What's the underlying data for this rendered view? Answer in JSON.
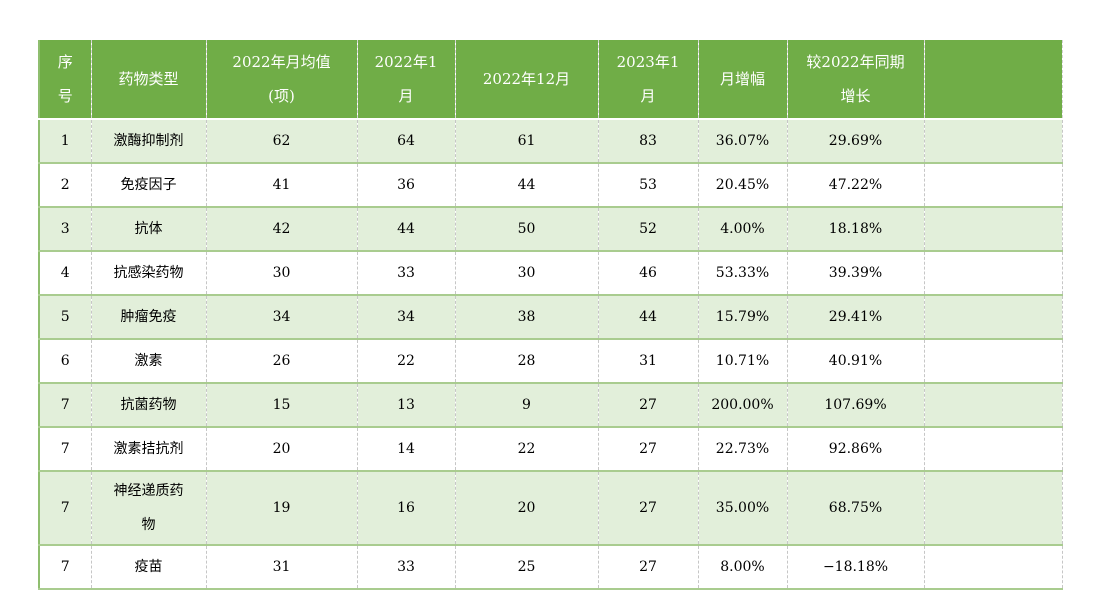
{
  "chart_data": {
    "type": "table",
    "title": "",
    "columns": [
      "序\n号",
      "药物类型",
      "2022年月均值\n(项)",
      "2022年1\n月",
      "2022年12月",
      "2023年1\n月",
      "月增幅",
      "较2022年同期\n增长",
      ""
    ],
    "column_keys": [
      "index",
      "drug-type",
      "avg-monthly-2022",
      "jan-2022",
      "dec-2022",
      "jan-2023",
      "mom-growth",
      "yoy-growth",
      "blank"
    ],
    "rows": [
      [
        "1",
        "激酶抑制剂",
        "62",
        "64",
        "61",
        "83",
        "36.07%",
        "29.69%",
        ""
      ],
      [
        "2",
        "免疫因子",
        "41",
        "36",
        "44",
        "53",
        "20.45%",
        "47.22%",
        ""
      ],
      [
        "3",
        "抗体",
        "42",
        "44",
        "50",
        "52",
        "4.00%",
        "18.18%",
        ""
      ],
      [
        "4",
        "抗感染药物",
        "30",
        "33",
        "30",
        "46",
        "53.33%",
        "39.39%",
        ""
      ],
      [
        "5",
        "肿瘤免疫",
        "34",
        "34",
        "38",
        "44",
        "15.79%",
        "29.41%",
        ""
      ],
      [
        "6",
        "激素",
        "26",
        "22",
        "28",
        "31",
        "10.71%",
        "40.91%",
        ""
      ],
      [
        "7",
        "抗菌药物",
        "15",
        "13",
        "9",
        "27",
        "200.00%",
        "107.69%",
        ""
      ],
      [
        "7",
        "激素拮抗剂",
        "20",
        "14",
        "22",
        "27",
        "22.73%",
        "92.86%",
        ""
      ],
      [
        "7",
        "神经递质药\n物",
        "19",
        "16",
        "20",
        "27",
        "35.00%",
        "68.75%",
        ""
      ],
      [
        "7",
        "疫苗",
        "31",
        "33",
        "25",
        "27",
        "8.00%",
        "−18.18%",
        ""
      ]
    ],
    "layout_hints": {
      "banding": "first data row shaded, alternating",
      "header_position": "top",
      "grid": "horizontal solid green lines, vertical dashed gray lines"
    }
  },
  "colors": {
    "header_bg": "#70AD47",
    "header_text": "#FFFFFF",
    "band_green": "#E2EFDA",
    "band_white": "#FFFFFF",
    "grid_green": "#A9CC8F",
    "outer_green": "#8FBE6F",
    "dash_gray": "#C6C6C6",
    "body_text": "#000000"
  }
}
